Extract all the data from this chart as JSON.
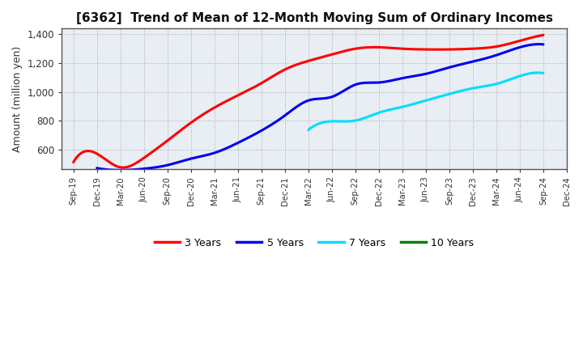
{
  "title": "[6362]  Trend of Mean of 12-Month Moving Sum of Ordinary Incomes",
  "ylabel": "Amount (million yen)",
  "background_color": "#ffffff",
  "plot_bg_color": "#e8eef4",
  "grid_color": "#999999",
  "ylim": [
    460,
    1440
  ],
  "yticks": [
    600,
    800,
    1000,
    1200,
    1400
  ],
  "ytick_labels": [
    "600",
    "800",
    "1,000",
    "1,200",
    "1,400"
  ],
  "x_labels": [
    "Sep-19",
    "Dec-19",
    "Mar-20",
    "Jun-20",
    "Sep-20",
    "Dec-20",
    "Mar-21",
    "Jun-21",
    "Sep-21",
    "Dec-21",
    "Mar-22",
    "Jun-22",
    "Sep-22",
    "Dec-22",
    "Mar-23",
    "Jun-23",
    "Sep-23",
    "Dec-23",
    "Mar-24",
    "Jun-24",
    "Sep-24",
    "Dec-24"
  ],
  "series": {
    "3 Years": {
      "color": "#ff0000",
      "x": [
        0,
        1,
        2,
        3,
        4,
        5,
        6,
        7,
        8,
        9,
        10,
        11,
        12,
        13,
        14,
        15,
        16,
        17,
        18,
        19,
        20
      ],
      "y": [
        510,
        570,
        475,
        540,
        660,
        785,
        890,
        975,
        1060,
        1155,
        1215,
        1260,
        1300,
        1310,
        1300,
        1295,
        1295,
        1300,
        1315,
        1355,
        1395
      ]
    },
    "5 Years": {
      "color": "#0000ee",
      "x": [
        1,
        2,
        3,
        4,
        5,
        6,
        7,
        8,
        9,
        10,
        11,
        12,
        13,
        14,
        15,
        16,
        17,
        18,
        19,
        20
      ],
      "y": [
        470,
        455,
        465,
        490,
        535,
        575,
        645,
        730,
        835,
        940,
        965,
        1050,
        1065,
        1095,
        1125,
        1170,
        1210,
        1255,
        1310,
        1330
      ]
    },
    "7 Years": {
      "color": "#00ddff",
      "x": [
        10,
        11,
        12,
        13,
        14,
        15,
        16,
        17,
        18,
        19,
        20
      ],
      "y": [
        735,
        795,
        800,
        855,
        895,
        940,
        985,
        1025,
        1055,
        1110,
        1130
      ]
    },
    "10 Years": {
      "color": "#008000",
      "x": [],
      "y": []
    }
  },
  "legend_entries": [
    "3 Years",
    "5 Years",
    "7 Years",
    "10 Years"
  ],
  "legend_colors": [
    "#ff0000",
    "#0000ee",
    "#00ddff",
    "#008000"
  ],
  "title_fontsize": 11,
  "axis_fontsize": 8,
  "ylabel_fontsize": 9
}
